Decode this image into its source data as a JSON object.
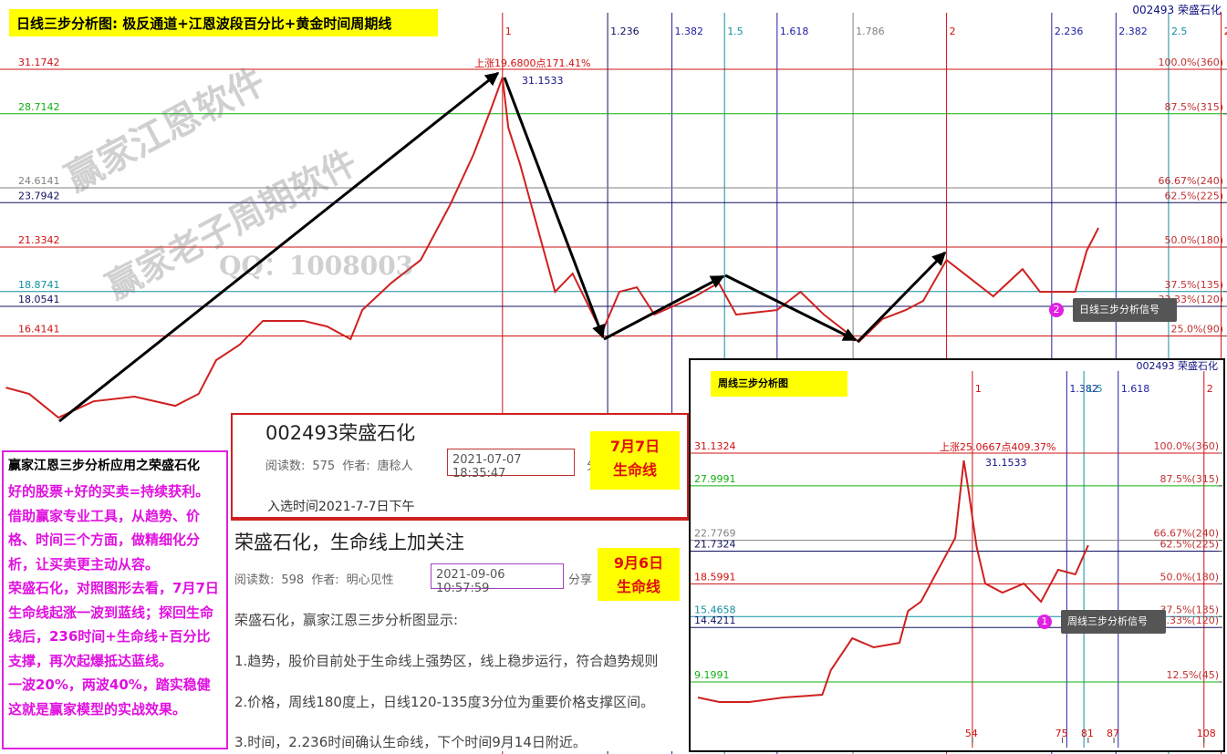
{
  "header": {
    "title": "日线三步分析图: 极反通道+江恩波段百分比+黄金时间周期线",
    "stock": "002493 荣盛石化"
  },
  "watermarks": [
    "赢家江恩软件",
    "赢家老子周期软件",
    "QQ：1008003"
  ],
  "chart_data": [
    {
      "type": "line",
      "xlim": [
        0,
        210
      ],
      "ylim": [
        11.8,
        34.0
      ],
      "y2lim": [
        11.8,
        34.0
      ],
      "yticks": [
        31.1742,
        28.7142,
        24.6141,
        23.7942,
        21.3342,
        18.8741,
        18.0541,
        16.4141
      ],
      "ytick_colors": [
        "#d01010",
        "#10b010",
        "#808080",
        "#101060",
        "#d01010",
        "#1090a0",
        "#101060",
        "#d01010"
      ],
      "y2ticks": [
        {
          "value": 31.1742,
          "label": "100.0%(360)"
        },
        {
          "value": 28.7142,
          "label": "87.5%(315)"
        },
        {
          "value": 24.6141,
          "label": "66.67%(240)"
        },
        {
          "value": 23.7942,
          "label": "62.5%(225)"
        },
        {
          "value": 21.3342,
          "label": "50.0%(180)"
        },
        {
          "value": 18.8741,
          "label": "37.5%(135)"
        },
        {
          "value": 18.0541,
          "label": "33.33%(120)"
        },
        {
          "value": 16.4141,
          "label": "25.0%(90)"
        }
      ],
      "xticks": [
        {
          "value": 86,
          "label": "1"
        },
        {
          "value": 104,
          "label": "1.236"
        },
        {
          "value": 115,
          "label": "1.382"
        },
        {
          "value": 124,
          "label": "1.5"
        },
        {
          "value": 133,
          "label": "1.618"
        },
        {
          "value": 146,
          "label": "1.786"
        },
        {
          "value": 162,
          "label": "2"
        },
        {
          "value": 180,
          "label": "2.236"
        },
        {
          "value": 191,
          "label": "2.382"
        },
        {
          "value": 200,
          "label": "2.5"
        },
        {
          "value": 209,
          "label": "2"
        }
      ],
      "xtick_colors": [
        "#d01010",
        "#101060",
        "#2020a0",
        "#1090a0",
        "#2020a0",
        "#808080",
        "#d01010",
        "#2020a0",
        "#2020a0",
        "#1090a0",
        "#d01010"
      ],
      "series": [
        {
          "color": "#d02020",
          "x": [
            1,
            5,
            10,
            16,
            23,
            30,
            34,
            37,
            41,
            45,
            52,
            56,
            60,
            62,
            67,
            72,
            77,
            81,
            84,
            86,
            87,
            89,
            92,
            95,
            98,
            103,
            106,
            109,
            112,
            119,
            123,
            126,
            133,
            137,
            141,
            147,
            151,
            155,
            158,
            162,
            165,
            170,
            175,
            178,
            184,
            186,
            188
          ],
          "values": [
            13.56,
            13.21,
            11.9,
            12.8,
            13.06,
            12.55,
            13.21,
            15.08,
            15.93,
            17.25,
            17.25,
            16.94,
            16.24,
            17.85,
            19.36,
            20.62,
            23.65,
            26.43,
            28.95,
            30.72,
            27.94,
            25.93,
            22.4,
            18.86,
            19.87,
            16.59,
            18.86,
            19.11,
            17.6,
            18.61,
            19.36,
            17.6,
            17.85,
            18.86,
            17.6,
            16.09,
            17.35,
            17.85,
            18.36,
            20.62,
            19.87,
            18.61,
            20.12,
            18.86,
            18.86,
            21.14,
            22.4
          ]
        }
      ],
      "annotations": [
        "上涨19.6800点171.41%",
        "31.1533"
      ],
      "signal": {
        "number": "2",
        "label": "日线三步分析信号"
      }
    },
    {
      "type": "line",
      "title": "周线三步分析图",
      "stock": "002493 荣盛石化",
      "xlim": [
        -11.7,
        112.3
      ],
      "ylim": [
        3.344,
        39.17
      ],
      "y2lim": [
        3.344,
        39.17
      ],
      "yticks": [
        31.1324,
        27.9991,
        22.7769,
        21.7324,
        18.5991,
        15.4658,
        14.4211,
        9.1991
      ],
      "ytick_colors": [
        "#d01010",
        "#10b010",
        "#808080",
        "#101060",
        "#d01010",
        "#1090a0",
        "#101060",
        "#10b010"
      ],
      "y2ticks": [
        {
          "value": 31.1324,
          "label": "100.0%(360)"
        },
        {
          "value": 27.9991,
          "label": "87.5%(315)"
        },
        {
          "value": 22.7769,
          "label": "66.67%(240)"
        },
        {
          "value": 21.7324,
          "label": "62.5%(225)"
        },
        {
          "value": 18.5991,
          "label": "50.0%(180)"
        },
        {
          "value": 15.4658,
          "label": "37.5%(135)"
        },
        {
          "value": 14.4211,
          "label": "33.33%(120)"
        },
        {
          "value": 9.1991,
          "label": "12.5%(45)"
        }
      ],
      "xticks": [
        54,
        75,
        81,
        87,
        108
      ],
      "x2ticks": [
        {
          "value": 54,
          "label": "1"
        },
        {
          "value": 76,
          "label": "1.382"
        },
        {
          "value": 80,
          "label": "1.5"
        },
        {
          "value": 88,
          "label": "1.618"
        },
        {
          "value": 108,
          "label": "2"
        }
      ],
      "xtick_colors": [
        "#d01010",
        "#2020a0",
        "#1090a0",
        "#2020a0",
        "#d01010"
      ],
      "series": [
        {
          "color": "#d02020",
          "x": [
            -10,
            -5,
            2,
            10,
            19,
            21,
            26,
            31,
            37,
            39,
            42,
            46,
            50,
            52,
            53,
            55,
            57,
            61,
            66,
            70,
            74,
            78,
            81
          ],
          "values": [
            7.71,
            7.28,
            7.28,
            7.71,
            7.97,
            10.33,
            13.39,
            12.52,
            12.95,
            16.01,
            16.89,
            19.95,
            23.0,
            30.43,
            27.81,
            22.13,
            18.63,
            17.76,
            18.63,
            16.89,
            19.95,
            19.51,
            22.3
          ]
        }
      ],
      "annotations": [
        "上涨25.0667点409.37%",
        "31.1533"
      ],
      "signal": {
        "number": "1",
        "label": "周线三步分析信号"
      }
    }
  ],
  "sidebar": {
    "title": "赢家江恩三步分析应用之荣盛石化",
    "paragraphs": [
      "好的股票+好的买卖=持续获利。借助赢家专业工具，从趋势、价格、时间三个方面，做精细化分析，让买卖更主动从容。",
      "荣盛石化，对照图形去看，7月7日生命线起涨一波到蓝线；探回生命线后，236时间+生命线+百分比支撑，再次起爆抵达蓝线。",
      "一波20%，两波40%，踏实稳健",
      "这就是赢家模型的实战效果。"
    ]
  },
  "articles": [
    {
      "title": "002493荣盛石化",
      "reads_label": "阅读数:",
      "reads": 575,
      "author_label": "作者:",
      "author": "唐稔人",
      "time": "2021-07-07 18:35:47",
      "share": "分",
      "note": "入选时间2021-7-7日下午",
      "badge": [
        "7月7日",
        "生命线"
      ]
    },
    {
      "title": "荣盛石化，生命线上加关注",
      "reads_label": "阅读数:",
      "reads": 598,
      "author_label": "作者:",
      "author": "明心见性",
      "time": "2021-09-06 10:57:59",
      "share": "分享",
      "badge": [
        "9月6日",
        "生命线"
      ],
      "body": [
        "荣盛石化，赢家江恩三步分析图显示:",
        "1.趋势，股价目前处于生命线上强势区，线上稳步运行，符合趋势规则",
        "2.价格，周线180度上，日线120-135度3分位为重要价格支撑区间。",
        "3.时间，2.236时间确认生命线，下个时间9月14日附近。"
      ]
    }
  ]
}
